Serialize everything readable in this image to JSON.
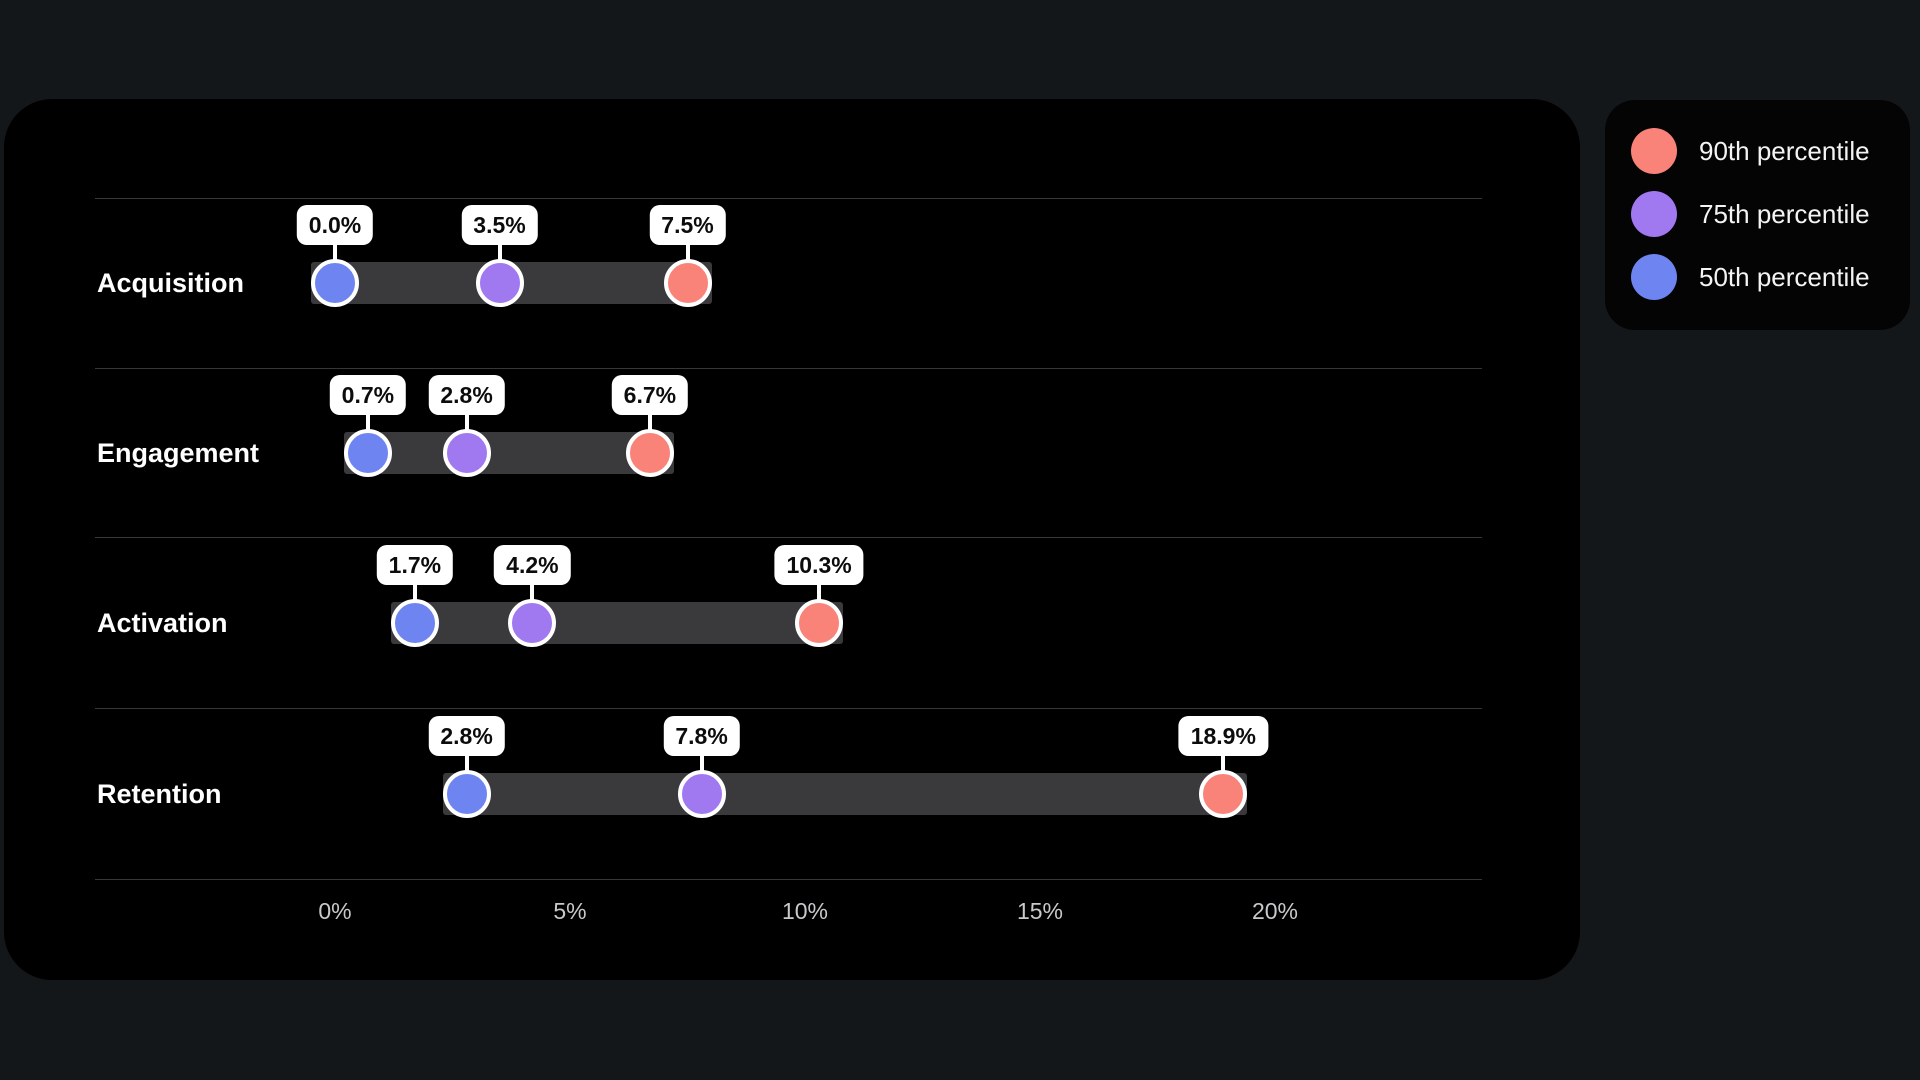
{
  "colors": {
    "page_background": "#14171a",
    "card_background": "#000000",
    "legend_background": "#040404",
    "gridline": "#35373a",
    "range_bar": "#3a3a3c",
    "p90": "#f98378",
    "p75": "#a078f0",
    "p50": "#6d84f1",
    "value_label_bg": "#ffffff",
    "value_label_text": "#0c0c0c",
    "category_text": "#ffffff",
    "axis_text": "#c7c9cb",
    "legend_text": "#f4f4f4"
  },
  "legend": {
    "items": [
      {
        "label": "90th percentile",
        "color": "#f98378",
        "swatch_icon": "circle-swatch-icon"
      },
      {
        "label": "75th percentile",
        "color": "#a078f0",
        "swatch_icon": "circle-swatch-icon"
      },
      {
        "label": "50th percentile",
        "color": "#6d84f1",
        "swatch_icon": "circle-swatch-icon"
      }
    ]
  },
  "chart_data": {
    "type": "scatter",
    "subtype": "dumbbell-percentile-dot-plot",
    "title": "",
    "xlabel": "",
    "ylabel": "",
    "categories": [
      "Acquisition",
      "Engagement",
      "Activation",
      "Retention"
    ],
    "series": [
      {
        "name": "50th percentile",
        "color": "#6d84f1",
        "values": [
          0.0,
          0.7,
          1.7,
          2.8
        ]
      },
      {
        "name": "75th percentile",
        "color": "#a078f0",
        "values": [
          3.5,
          2.8,
          4.2,
          7.8
        ]
      },
      {
        "name": "90th percentile",
        "color": "#f98378",
        "values": [
          7.5,
          6.7,
          10.3,
          18.9
        ]
      }
    ],
    "value_labels": [
      [
        "0.0%",
        "3.5%",
        "7.5%"
      ],
      [
        "0.7%",
        "2.8%",
        "6.7%"
      ],
      [
        "1.7%",
        "4.2%",
        "10.3%"
      ],
      [
        "2.8%",
        "7.8%",
        "18.9%"
      ]
    ],
    "x_ticks": {
      "values": [
        0,
        5,
        10,
        15,
        20
      ],
      "labels": [
        "0%",
        "5%",
        "10%",
        "15%",
        "20%"
      ]
    },
    "xlim": [
      0,
      20
    ],
    "grid": "horizontal-only",
    "legend_position": "top-right-outside",
    "bar_spans": "50th-to-90th-percentile"
  }
}
